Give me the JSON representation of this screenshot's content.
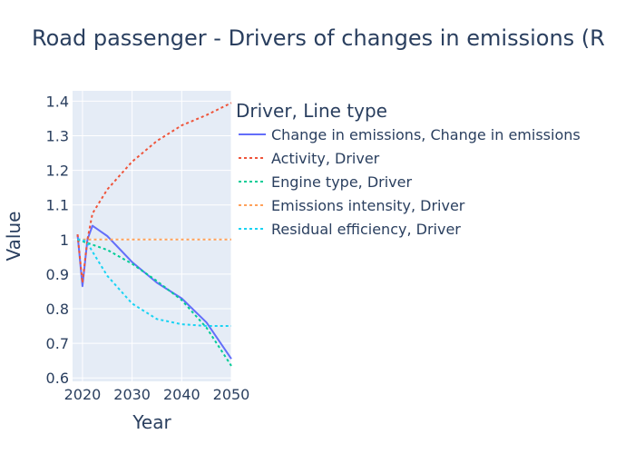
{
  "chart_data": {
    "type": "line",
    "title": "Road passenger - Drivers of changes in emissions (R",
    "xlabel": "Year",
    "ylabel": "Value",
    "xlim": [
      2018,
      2050
    ],
    "ylim": [
      0.59,
      1.43
    ],
    "x_ticks": [
      2020,
      2030,
      2040,
      2050
    ],
    "y_ticks": [
      0.6,
      0.7,
      0.8,
      0.9,
      1,
      1.1,
      1.2,
      1.3,
      1.4
    ],
    "x_tick_labels": [
      "2020",
      "2030",
      "2040",
      "2050"
    ],
    "y_tick_labels": [
      "0.6",
      "0.7",
      "0.8",
      "0.9",
      "1",
      "1.1",
      "1.2",
      "1.3",
      "1.4"
    ],
    "grid": true,
    "plot_bg": "#e5ecf6",
    "legend": {
      "title": "Driver, Line type",
      "placement": "right"
    },
    "series": [
      {
        "name": "Change in emissions, Change in emissions",
        "color": "#636efa",
        "dash": "solid",
        "x": [
          2019,
          2020,
          2021,
          2022,
          2025,
          2030,
          2035,
          2040,
          2045,
          2050
        ],
        "y": [
          1.015,
          0.865,
          1.0,
          1.04,
          1.01,
          0.935,
          0.875,
          0.83,
          0.76,
          0.655
        ]
      },
      {
        "name": "Activity, Driver",
        "color": "#ef553b",
        "dash": "dot",
        "x": [
          2019,
          2020,
          2021,
          2022,
          2025,
          2030,
          2035,
          2040,
          2045,
          2050
        ],
        "y": [
          1.015,
          0.875,
          1.0,
          1.075,
          1.145,
          1.225,
          1.285,
          1.33,
          1.36,
          1.395
        ]
      },
      {
        "name": "Engine type, Driver",
        "color": "#00cc96",
        "dash": "dot",
        "x": [
          2019,
          2020,
          2021,
          2022,
          2025,
          2030,
          2035,
          2040,
          2045,
          2050
        ],
        "y": [
          1.0,
          0.995,
          0.99,
          0.985,
          0.97,
          0.93,
          0.88,
          0.825,
          0.745,
          0.635
        ]
      },
      {
        "name": "Emissions intensity, Driver",
        "color": "#ffa15a",
        "dash": "dot",
        "x": [
          2019,
          2020,
          2021,
          2025,
          2030,
          2035,
          2040,
          2045,
          2050
        ],
        "y": [
          1.0,
          1.0,
          1.0,
          1.0,
          1.0,
          1.0,
          1.0,
          1.0,
          1.0
        ]
      },
      {
        "name": "Residual efficiency, Driver",
        "color": "#19d3f3",
        "dash": "dot",
        "x": [
          2019,
          2020,
          2021,
          2022,
          2025,
          2030,
          2035,
          2040,
          2045,
          2050
        ],
        "y": [
          1.0,
          1.0,
          0.99,
          0.965,
          0.895,
          0.815,
          0.77,
          0.755,
          0.75,
          0.75
        ]
      }
    ]
  }
}
